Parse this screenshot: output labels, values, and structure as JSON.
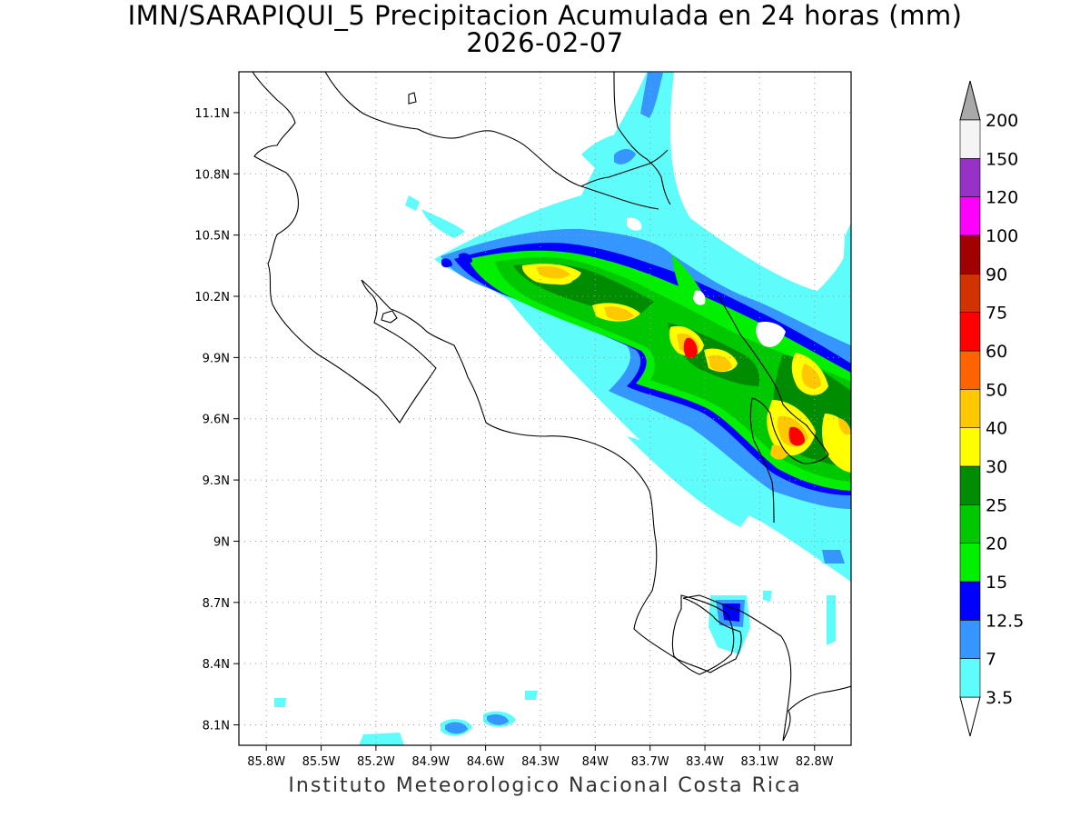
{
  "title": {
    "line1": "IMN/SARAPIQUI_5 Precipitacion Acumulada en 24 horas (mm)",
    "line2": "2026-02-07"
  },
  "footer": "Instituto Meteorologico Nacional Costa Rica",
  "map": {
    "lon_range": [
      -85.95,
      -82.6
    ],
    "lat_range": [
      8.0,
      11.3
    ],
    "lon_ticks": [
      "85.8W",
      "85.5W",
      "85.2W",
      "84.9W",
      "84.6W",
      "84.3W",
      "84W",
      "83.7W",
      "83.4W",
      "83.1W",
      "82.8W"
    ],
    "lat_ticks": [
      "8.1N",
      "8.4N",
      "8.7N",
      "9N",
      "9.3N",
      "9.6N",
      "9.9N",
      "10.2N",
      "10.5N",
      "10.8N",
      "11.1N"
    ]
  },
  "colorbar": {
    "levels": [
      "3.5",
      "7",
      "12.5",
      "15",
      "20",
      "25",
      "30",
      "40",
      "50",
      "60",
      "75",
      "90",
      "100",
      "120",
      "150",
      "200"
    ],
    "colors": [
      "#5ffcfc",
      "#3696ff",
      "#0000ff",
      "#00f000",
      "#00c800",
      "#008c00",
      "#ffff00",
      "#ffc800",
      "#ff6400",
      "#ff0000",
      "#d23200",
      "#a00000",
      "#ff00ff",
      "#9632c8",
      "#f4f4f4"
    ],
    "under_color": "#ffffff",
    "over_color": "#a9a9a9"
  }
}
